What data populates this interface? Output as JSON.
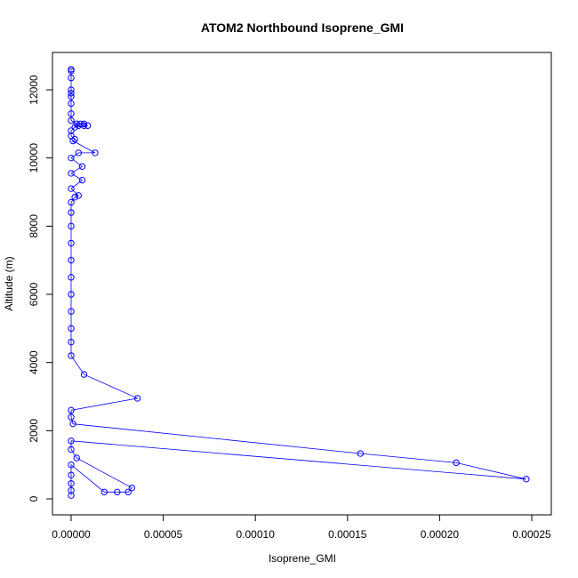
{
  "chart_data": {
    "type": "line",
    "title": "ATOM2 Northbound Isoprene_GMI",
    "xlabel": "Isoprene_GMI",
    "ylabel": "Altitude (m)",
    "xlim": [
      0,
      0.00025
    ],
    "ylim": [
      0,
      12600
    ],
    "x_ticks": [
      0,
      5e-05,
      0.0001,
      0.00015,
      0.0002,
      0.00025
    ],
    "x_tick_labels": [
      "0.00000",
      "0.00005",
      "0.00010",
      "0.00015",
      "0.00020",
      "0.00025"
    ],
    "y_ticks": [
      0,
      2000,
      4000,
      6000,
      8000,
      10000,
      12000
    ],
    "y_tick_labels": [
      "0",
      "2000",
      "4000",
      "6000",
      "8000",
      "10000",
      "12000"
    ],
    "grid": false,
    "legend": "none",
    "marker": "open-circle",
    "color": "#0000ff",
    "series": [
      {
        "points": [
          {
            "x": 0.0,
            "y": 12600
          },
          {
            "x": 0.0,
            "y": 12550
          },
          {
            "x": 0.0,
            "y": 12350
          },
          {
            "x": 0.0,
            "y": 12000
          },
          {
            "x": 0.0,
            "y": 11900
          },
          {
            "x": 0.0,
            "y": 11800
          },
          {
            "x": 0.0,
            "y": 11600
          },
          {
            "x": 0.0,
            "y": 11300
          },
          {
            "x": 0.0,
            "y": 11100
          },
          {
            "x": 3e-06,
            "y": 11000
          },
          {
            "x": 5e-06,
            "y": 11000
          },
          {
            "x": 7e-06,
            "y": 11000
          },
          {
            "x": 9e-06,
            "y": 10950
          },
          {
            "x": 7e-06,
            "y": 10950
          },
          {
            "x": 4e-06,
            "y": 10950
          },
          {
            "x": 2e-06,
            "y": 10900
          },
          {
            "x": 0.0,
            "y": 10800
          },
          {
            "x": 0.0,
            "y": 10650
          },
          {
            "x": 2e-06,
            "y": 10550
          },
          {
            "x": 1e-06,
            "y": 10500
          },
          {
            "x": 1.3e-05,
            "y": 10150
          },
          {
            "x": 4e-06,
            "y": 10150
          },
          {
            "x": 0.0,
            "y": 10000
          },
          {
            "x": 6e-06,
            "y": 9750
          },
          {
            "x": 0.0,
            "y": 9550
          },
          {
            "x": 6e-06,
            "y": 9350
          },
          {
            "x": 0.0,
            "y": 9100
          },
          {
            "x": 4e-06,
            "y": 8900
          },
          {
            "x": 2e-06,
            "y": 8850
          },
          {
            "x": 0.0,
            "y": 8700
          },
          {
            "x": 0.0,
            "y": 8400
          },
          {
            "x": 0.0,
            "y": 8000
          },
          {
            "x": 0.0,
            "y": 7500
          },
          {
            "x": 0.0,
            "y": 7000
          },
          {
            "x": 0.0,
            "y": 6500
          },
          {
            "x": 0.0,
            "y": 6000
          },
          {
            "x": 0.0,
            "y": 5500
          },
          {
            "x": 0.0,
            "y": 5000
          },
          {
            "x": 0.0,
            "y": 4600
          },
          {
            "x": 0.0,
            "y": 4200
          },
          {
            "x": 7e-06,
            "y": 3650
          },
          {
            "x": 3.6e-05,
            "y": 2950
          },
          {
            "x": 0.0,
            "y": 2600
          },
          {
            "x": 0.0,
            "y": 2400
          },
          {
            "x": 1e-06,
            "y": 2200
          },
          {
            "x": 0.000157,
            "y": 1330
          },
          {
            "x": 0.000209,
            "y": 1060
          },
          {
            "x": 0.000247,
            "y": 580
          },
          {
            "x": 0.0,
            "y": 1700
          },
          {
            "x": 0.0,
            "y": 1450
          },
          {
            "x": 3e-06,
            "y": 1200
          },
          {
            "x": 3.3e-05,
            "y": 320
          },
          {
            "x": 3.1e-05,
            "y": 200
          },
          {
            "x": 2.5e-05,
            "y": 200
          },
          {
            "x": 1.8e-05,
            "y": 200
          },
          {
            "x": 0.0,
            "y": 1000
          },
          {
            "x": 0.0,
            "y": 700
          },
          {
            "x": 0.0,
            "y": 450
          },
          {
            "x": 0.0,
            "y": 250
          },
          {
            "x": 0.0,
            "y": 100
          }
        ]
      }
    ]
  }
}
